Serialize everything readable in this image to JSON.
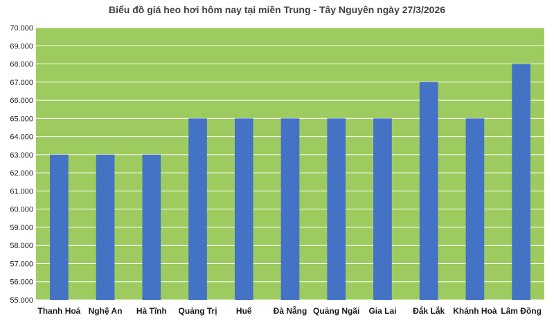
{
  "chart_data": {
    "type": "bar",
    "title": "Biểu đồ giá heo hơi hôm nay tại miền Trung - Tây Nguyên ngày 27/3/2026",
    "categories": [
      "Thanh Hoá",
      "Nghệ An",
      "Hà Tĩnh",
      "Quảng Trị",
      "Huế",
      "Đà Nẵng",
      "Quảng Ngãi",
      "Gia Lai",
      "Đắk Lắk",
      "Khánh Hoà",
      "Lâm Đồng"
    ],
    "values": [
      63000,
      63000,
      63000,
      65000,
      65000,
      65000,
      65000,
      65000,
      67000,
      65000,
      68000
    ],
    "ylim": [
      55000,
      70000
    ],
    "ytick_step": 1000,
    "ytick_labels": [
      "55.000",
      "56.000",
      "57.000",
      "58.000",
      "59.000",
      "60.000",
      "61.000",
      "62.000",
      "63.000",
      "64.000",
      "65.000",
      "66.000",
      "67.000",
      "68.000",
      "69.000",
      "70.000"
    ],
    "grid": true,
    "legend": "none",
    "colors": {
      "bar": "#4472c4",
      "plot_background": "#9ecb5f",
      "gridline": "#ffffff"
    }
  }
}
